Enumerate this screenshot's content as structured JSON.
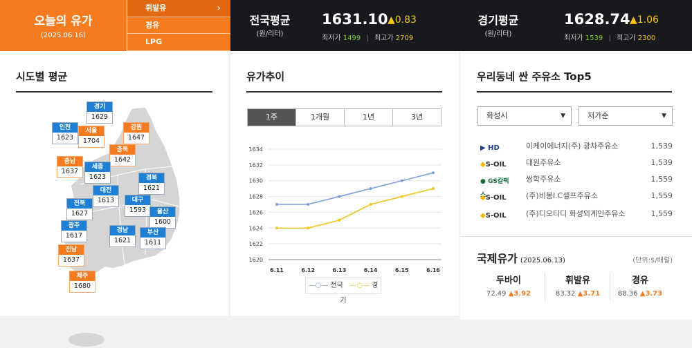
{
  "today": {
    "title": "오늘의 유가",
    "date": "(2025.06.16)"
  },
  "fuel_tabs": [
    {
      "label": "휘발유",
      "active": true
    },
    {
      "label": "경유",
      "active": false
    },
    {
      "label": "LPG",
      "active": false
    }
  ],
  "national": {
    "label": "전국평균",
    "unit": "(원/리터)",
    "price": "1631.10",
    "change": "▲0.83",
    "min_label": "최저가",
    "min": "1499",
    "max_label": "최고가",
    "max": "2709"
  },
  "gyeonggi": {
    "label": "경기평균",
    "unit": "(원/리터)",
    "price": "1628.74",
    "change": "▲1.06",
    "min_label": "최저가",
    "min": "1539",
    "max_label": "최고가",
    "max": "2300"
  },
  "regions": {
    "title": "시도별 평균",
    "items": [
      {
        "name": "경기",
        "value": "1629",
        "color": "blue"
      },
      {
        "name": "인천",
        "value": "1623",
        "color": "blue"
      },
      {
        "name": "서울",
        "value": "1704",
        "color": "orange"
      },
      {
        "name": "강원",
        "value": "1647",
        "color": "orange"
      },
      {
        "name": "충북",
        "value": "1642",
        "color": "orange"
      },
      {
        "name": "충남",
        "value": "1637",
        "color": "orange"
      },
      {
        "name": "세종",
        "value": "1623",
        "color": "blue"
      },
      {
        "name": "대전",
        "value": "1613",
        "color": "blue"
      },
      {
        "name": "경북",
        "value": "1621",
        "color": "blue"
      },
      {
        "name": "전북",
        "value": "1627",
        "color": "blue"
      },
      {
        "name": "대구",
        "value": "1593",
        "color": "blue"
      },
      {
        "name": "울산",
        "value": "1600",
        "color": "blue"
      },
      {
        "name": "광주",
        "value": "1617",
        "color": "blue"
      },
      {
        "name": "경남",
        "value": "1621",
        "color": "blue"
      },
      {
        "name": "부산",
        "value": "1611",
        "color": "blue"
      },
      {
        "name": "전남",
        "value": "1637",
        "color": "orange"
      },
      {
        "name": "제주",
        "value": "1680",
        "color": "orange"
      }
    ]
  },
  "trend": {
    "title": "유가추이",
    "periods": [
      {
        "label": "1주",
        "active": true
      },
      {
        "label": "1개월",
        "active": false
      },
      {
        "label": "1년",
        "active": false
      },
      {
        "label": "3년",
        "active": false
      }
    ]
  },
  "chart_data": {
    "type": "line",
    "x": [
      "6.11",
      "6.12",
      "6.13",
      "6.14",
      "6.15",
      "6.16"
    ],
    "series": [
      {
        "name": "전국",
        "values": [
          1627,
          1627,
          1628,
          1629,
          1630,
          1631
        ],
        "color": "#7b9fd8"
      },
      {
        "name": "경기",
        "values": [
          1624,
          1624,
          1625,
          1627,
          1628,
          1629
        ],
        "color": "#f0c419"
      }
    ],
    "ylim": [
      1620,
      1634
    ],
    "yticks": [
      1620,
      1622,
      1624,
      1626,
      1628,
      1630,
      1632,
      1634
    ],
    "grid": true,
    "legend": "bottom"
  },
  "top5": {
    "title": "우리동네 싼 주유소 Top5",
    "region_select": "화성시",
    "sort_select": "저가순",
    "stations": [
      {
        "brand": "HD현대오일뱅크",
        "logo": "HD",
        "name": "이케이에너지(주) 광차주유소",
        "price": "1,539"
      },
      {
        "brand": "S-OIL",
        "logo": "S-OIL",
        "name": "대원주유소",
        "price": "1,539"
      },
      {
        "brand": "GS칼텍스",
        "logo": "GS칼텍스",
        "name": "쌍학주유소",
        "price": "1,559"
      },
      {
        "brand": "S-OIL",
        "logo": "S-OIL",
        "name": "(주)비봉I.C셀프주유소",
        "price": "1,559"
      },
      {
        "brand": "S-OIL",
        "logo": "S-OIL",
        "name": "(주)디오티디 화성외계인주유소",
        "price": "1,559"
      }
    ]
  },
  "intl": {
    "title": "국제유가",
    "date": "(2025.06.13)",
    "unit": "(단위:$/배럴)",
    "items": [
      {
        "name": "두바이",
        "value": "72.49",
        "change": "▲3.92"
      },
      {
        "name": "휘발유",
        "value": "83.32",
        "change": "▲3.71"
      },
      {
        "name": "경유",
        "value": "88.36",
        "change": "▲3.73"
      }
    ]
  }
}
